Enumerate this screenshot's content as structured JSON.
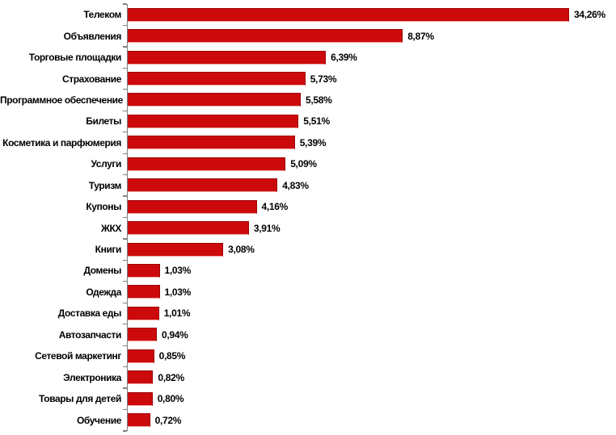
{
  "chart_data": {
    "type": "bar",
    "orientation": "horizontal",
    "title": "",
    "xlabel": "",
    "ylabel": "",
    "grid": false,
    "legend": false,
    "decimal_separator": ",",
    "axis_color": "#7f7f7f",
    "bar_color": "#cc0a0c",
    "bar_border_dark": "#9c0305",
    "bar_border_light": "#efaaaa",
    "label_color": "#000000",
    "categories": [
      "Телеком",
      "Объявления",
      "Торговые площадки",
      "Страхование",
      "Программное обеспечение",
      "Билеты",
      "Косметика и парфюмерия",
      "Услуги",
      "Туризм",
      "Купоны",
      "ЖКХ",
      "Книги",
      "Домены",
      "Одежда",
      "Доставка еды",
      "Автозапчасти",
      "Сетевой маркетинг",
      "Электроника",
      "Товары для детей",
      "Обучение"
    ],
    "values": [
      34.26,
      8.87,
      6.39,
      5.73,
      5.58,
      5.51,
      5.39,
      5.09,
      4.83,
      4.16,
      3.91,
      3.08,
      1.03,
      1.03,
      1.01,
      0.94,
      0.85,
      0.82,
      0.8,
      0.72
    ],
    "value_labels": [
      "34,26%",
      "8,87%",
      "6,39%",
      "5,73%",
      "5,58%",
      "5,51%",
      "5,39%",
      "5,09%",
      "4,83%",
      "4,16%",
      "3,91%",
      "3,08%",
      "1,03%",
      "1,03%",
      "1,01%",
      "0,94%",
      "0,85%",
      "0,82%",
      "0,80%",
      "0,72%"
    ]
  }
}
